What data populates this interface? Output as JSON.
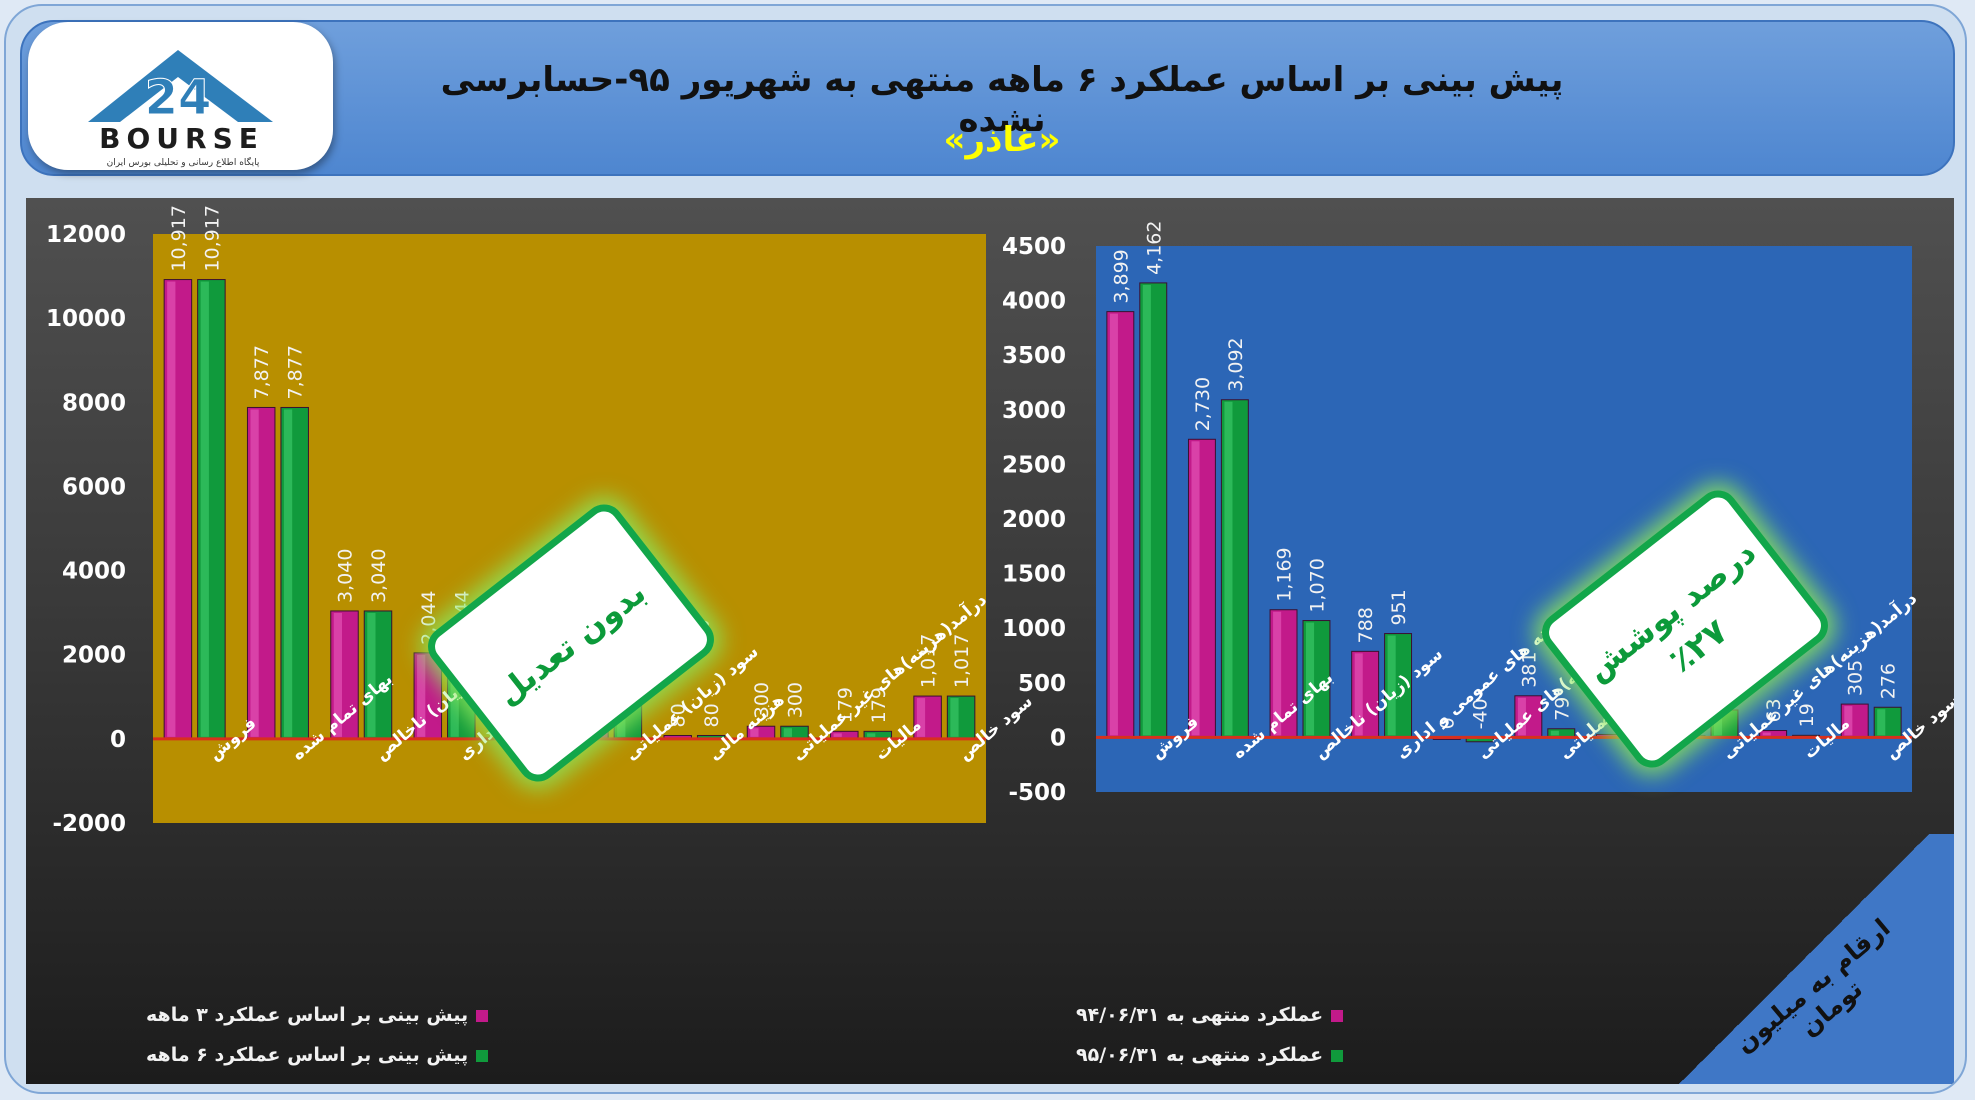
{
  "header": {
    "title": "پیش بینی بر اساس عملکرد ۶ ماهه منتهی به شهریور ۹۵-حسابرسی نشده",
    "subtitle": "«غاذر»",
    "logo_text": "BOURSE",
    "logo_number": "24",
    "logo_caption": "پایگاه اطلاع رسانی و تحلیلی بورس ایران"
  },
  "stamps": {
    "left": "بدون تعدیل",
    "right_line1": "درصد پوشش",
    "right_line2": "٪۲۷"
  },
  "corner_note": "ارقام به میلیون تومان",
  "legend_left": {
    "series1": "پیش بینی بر اساس عملکرد ۳ ماهه",
    "series2": "پیش بینی بر اساس عملکرد ۶ ماهه"
  },
  "legend_right": {
    "series1": "عملکرد منتهی به ۹۴/۰۶/۳۱",
    "series2": "عملکرد منتهی به ۹۵/۰۶/۳۱"
  },
  "colors": {
    "magenta": "#c21a8a",
    "green": "#109a3c",
    "left_plot_bg": "#b88f00",
    "right_plot_bg": "#2c66b6",
    "zero_line": "#d8301c"
  },
  "chart_data": [
    {
      "type": "bar",
      "categories": [
        "فروش",
        "بهای تمام شده",
        "سود (زیان) ناخالص",
        "هزینه های عمومی و اداری",
        "درآمد(هزینه)های عملیاتی",
        "سود (زیان) عملیاتی",
        "هزینه مالی",
        "درآمد(هزینه)های غیر عملیاتی",
        "مالیات",
        "سود خالص"
      ],
      "series": [
        {
          "name": "پیش بینی بر اساس عملکرد ۳ ماهه",
          "values": [
            10917,
            7877,
            3040,
            2044,
            -20,
            976,
            80,
            300,
            179,
            1017
          ]
        },
        {
          "name": "پیش بینی بر اساس عملکرد ۶ ماهه",
          "values": [
            10917,
            7877,
            3040,
            2044,
            -20,
            976,
            80,
            300,
            179,
            1017
          ]
        }
      ],
      "labels": [
        [
          "10,917",
          "7,877",
          "3,040",
          "2,044",
          "-20",
          "976",
          "80",
          "300",
          "179",
          "1,017"
        ],
        [
          "10,917",
          "7,877",
          "3,040",
          "2,044",
          "-20",
          "976",
          "80",
          "300",
          "179",
          "1,017"
        ]
      ],
      "yticks": [
        12000,
        10000,
        8000,
        6000,
        4000,
        2000,
        0,
        -2000
      ],
      "ylim": [
        -2000,
        12000
      ]
    },
    {
      "type": "bar",
      "categories": [
        "فروش",
        "بهای تمام شده",
        "سود (زیان) ناخالص",
        "هزینه های عمومی و اداری",
        "درآمد(هزینه)های عملیاتی",
        "سود (زیان) عملیاتی",
        "هزینه مالی",
        "درآمد(هزینه)های غیر عملیاتی",
        "مالیات",
        "سود خالص"
      ],
      "series": [
        {
          "name": "عملکرد منتهی به ۹۴/۰۶/۳۱",
          "values": [
            3899,
            2730,
            1169,
            788,
            0,
            381,
            27,
            15,
            63,
            305
          ]
        },
        {
          "name": "عملکرد منتهی به ۹۵/۰۶/۳۱",
          "values": [
            4162,
            3092,
            1070,
            951,
            -40,
            79,
            35,
            251,
            19,
            276
          ]
        }
      ],
      "labels": [
        [
          "3,899",
          "2,730",
          "1,169",
          "788",
          "0",
          "381",
          "27",
          "15",
          "63",
          "305"
        ],
        [
          "4,162",
          "3,092",
          "1,070",
          "951",
          "-40",
          "79",
          "35",
          "251",
          "19",
          "276"
        ]
      ],
      "yticks": [
        4500,
        4000,
        3500,
        3000,
        2500,
        2000,
        1500,
        1000,
        500,
        0,
        -500
      ],
      "ylim": [
        -500,
        4500
      ]
    }
  ]
}
